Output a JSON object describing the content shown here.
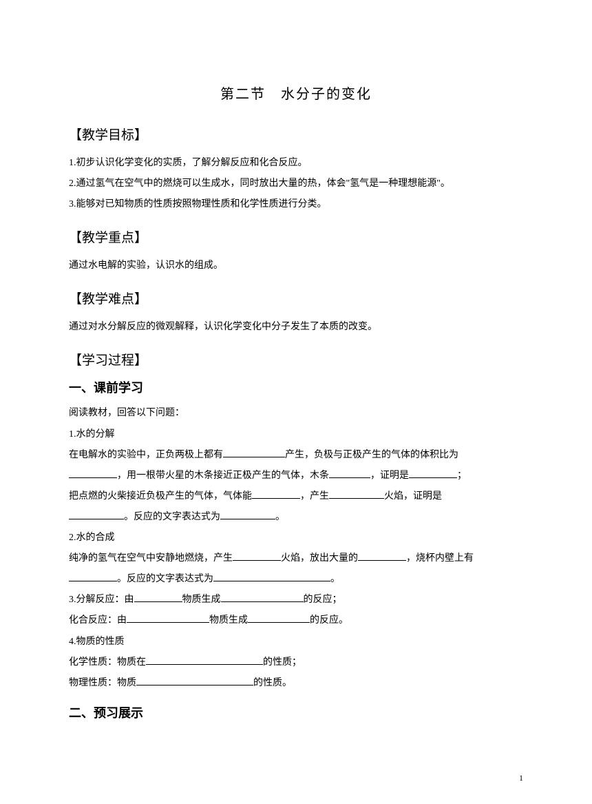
{
  "title": "第二节　水分子的变化",
  "sections": {
    "goals": {
      "heading": "【教学目标】",
      "items": [
        "1.初步认识化学变化的实质，了解分解反应和化合反应。",
        "2.通过氢气在空气中的燃烧可以生成水，同时放出大量的热，体会\"氢气是一种理想能源\"。",
        "3.能够对已知物质的性质按照物理性质和化学性质进行分类。"
      ]
    },
    "keypoint": {
      "heading": "【教学重点】",
      "text": "通过水电解的实验，认识水的组成。"
    },
    "difficulty": {
      "heading": "【教学难点】",
      "text": "通过对水分解反应的微观解释，认识化学变化中分子发生了本质的改变。"
    },
    "process": {
      "heading": "【学习过程】",
      "sub1_heading": "一、课前学习",
      "reading": "阅读教材，回答以下问题：",
      "q1_title": "1.水的分解",
      "q1_line1_a": "在电解水的实验中，正负两极上都有",
      "q1_line1_b": "产生，负极与正极产生的气体的体积比为",
      "q1_line2_a": "，用一根带火星的木条接近正极产生的气体，木条",
      "q1_line2_b": "，证明是",
      "q1_line2_c": "；",
      "q1_line3_a": "把点燃的火柴接近负极产生的气体，气体能",
      "q1_line3_b": "，产生",
      "q1_line3_c": "火焰，证明是",
      "q1_line4_a": "。反应的文字表达式为",
      "q1_line4_b": "。",
      "q2_title": "2.水的合成",
      "q2_line1_a": "纯净的氢气在空气中安静地燃烧，产生",
      "q2_line1_b": "火焰，放出大量的",
      "q2_line1_c": "，烧杯内壁上有",
      "q2_line2_a": "。反应的文字表达式为",
      "q2_line2_b": "。",
      "q3_line1_a": "3.分解反应：由",
      "q3_line1_b": "物质生成",
      "q3_line1_c": "的反应；",
      "q3_line2_a": "化合反应：由",
      "q3_line2_b": "物质生成",
      "q3_line2_c": "的反应。",
      "q4_title": "4.物质的性质",
      "q4_line1_a": "化学性质：物质在",
      "q4_line1_b": "的性质；",
      "q4_line2_a": "物理性质：物质",
      "q4_line2_b": "的性质。",
      "sub2_heading": "二、预习展示"
    }
  },
  "page_number": "1",
  "blank_widths": {
    "w60": "60px",
    "w70": "70px",
    "w80": "80px",
    "w90": "90px",
    "w100": "100px",
    "w120": "120px",
    "w150": "150px",
    "w170": "170px"
  }
}
